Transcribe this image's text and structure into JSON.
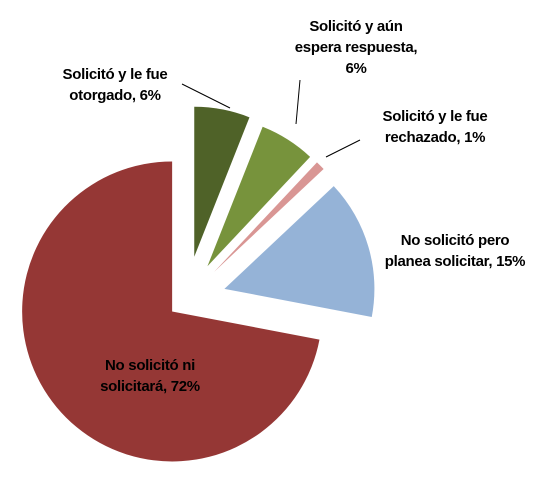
{
  "chart_data": {
    "type": "pie",
    "values": [
      6,
      6,
      1,
      15,
      72
    ],
    "value_labels": [
      "Solicitó y le fue otorgado, 6%",
      "Solicitó y aún espera respuesta, 6%",
      "Solicitó y le fue rechazado, 1%",
      "No solicitó pero planea solicitar, 15%",
      "No solicitó ni solicitará, 72%"
    ],
    "colors": [
      "#4f6228",
      "#77933c",
      "#d99694",
      "#95b3d7",
      "#953735"
    ]
  }
}
